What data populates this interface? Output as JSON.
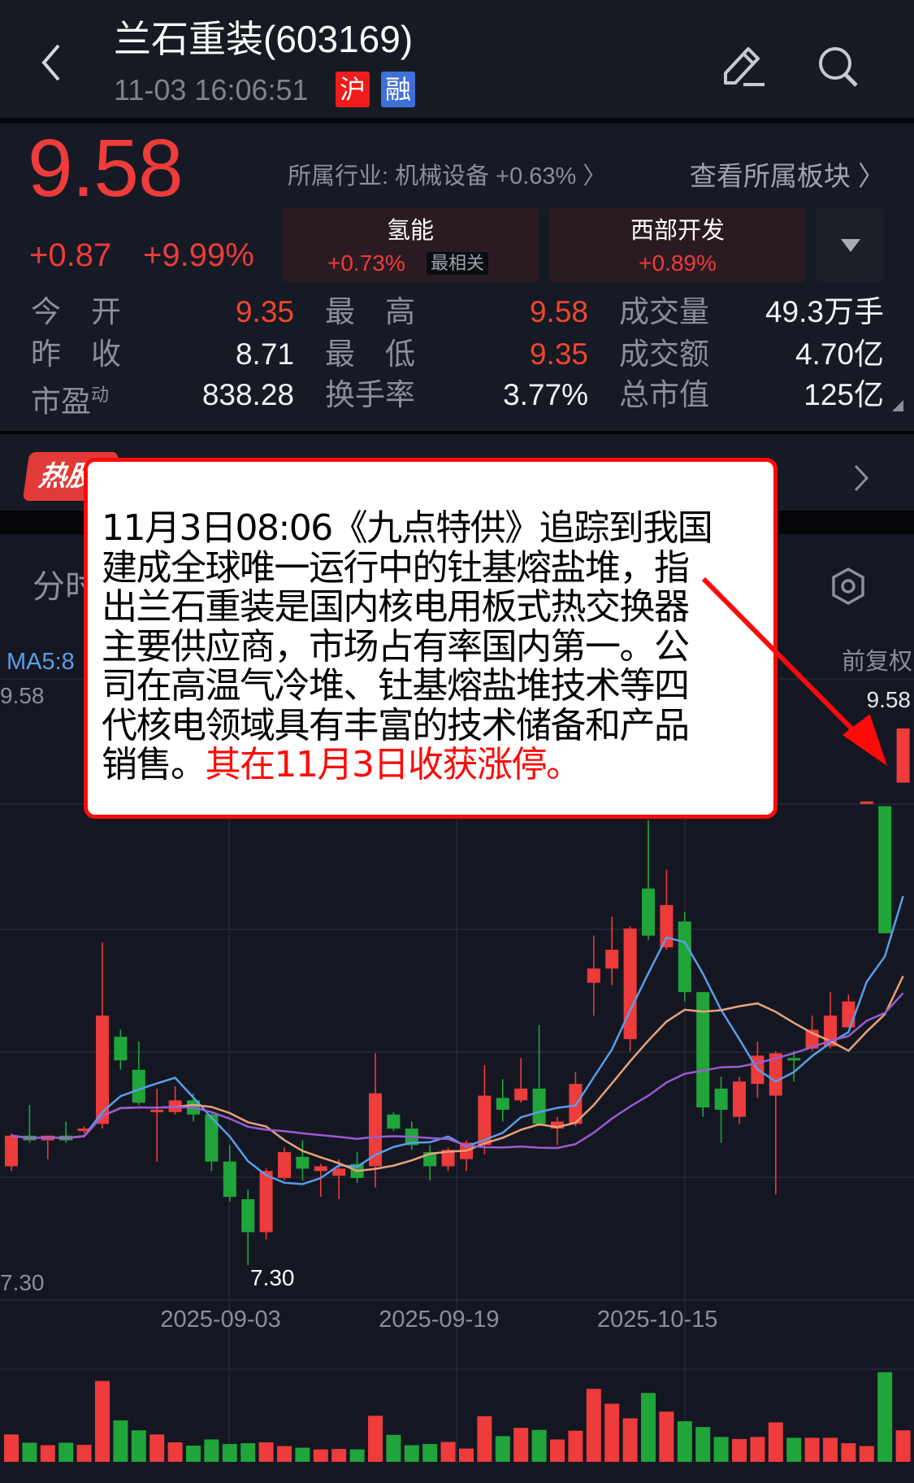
{
  "header": {
    "title": "兰石重装(603169)",
    "timestamp": "11-03 16:06:51",
    "badge_sh": "沪",
    "badge_margin": "融",
    "icons": [
      "back-icon",
      "edit-icon",
      "search-icon"
    ]
  },
  "quote": {
    "price": "9.58",
    "change": "+0.87",
    "change_pct": "+9.99%",
    "industry": "所属行业: 机械设备 +0.63% 〉",
    "view_sectors": "查看所属板块 〉",
    "concepts": [
      {
        "name": "氢能",
        "pct": "+0.73%",
        "tag": "最相关"
      },
      {
        "name": "西部开发",
        "pct": "+0.89%"
      }
    ],
    "stats": [
      {
        "l1": "今　开",
        "v1": "9.35",
        "l2": "最　高",
        "v2": "9.58",
        "l3": "成交量",
        "v3": "49.3万手"
      },
      {
        "l1": "昨　收",
        "v1": "8.71",
        "l2": "最　低",
        "v2": "9.35",
        "l3": "成交额",
        "v3": "4.70亿"
      },
      {
        "l1": "市盈",
        "l1_sup": "动",
        "v1": "838.28",
        "l2": "换手率",
        "v2": "3.77%",
        "l3": "总市值",
        "v3": "125亿"
      }
    ]
  },
  "hot": {
    "badge": "热股"
  },
  "tabs": {
    "first": "分时"
  },
  "chart_meta": {
    "ma_label": "MA5:8",
    "adjust": "前复权",
    "max_left": "9.58",
    "max_right": "9.58",
    "min_left": "7.30",
    "low_mark": "7.30"
  },
  "popup": {
    "lines": [
      "11月3日08:06《九点特供》追踪到我国",
      "建成全球唯一运行中的钍基熔盐堆，指",
      "出兰石重装是国内核电用板式热交换器",
      "主要供应商，市场占有率国内第一。公",
      "司在高温气冷堆、钍基熔盐堆技术等四",
      "代核电领域具有丰富的技术储备和产品"
    ],
    "last_black": "销售。",
    "last_red": "其在11月3日收获涨停。",
    "highlight_color": "#ff0a0a"
  },
  "colors": {
    "up": "#ee3b3b",
    "down": "#1fa53a",
    "ma5": "#5a9de8",
    "ma10": "#e8a27a",
    "ma20": "#9a5bd0",
    "accent_blue": "#3f6fd8"
  },
  "chart_data": {
    "type": "candlestick",
    "ylim": [
      7.3,
      9.58
    ],
    "date_labels": [
      "2025-09-03",
      "2025-09-19",
      "2025-10-15"
    ],
    "date_label_index": [
      11.5,
      23.5,
      35.5
    ],
    "ma_periods": [
      5,
      10,
      20
    ],
    "volume_unit": "万手",
    "ohlc": [
      [
        7.72,
        7.86,
        7.7,
        7.85
      ],
      [
        7.85,
        7.98,
        7.82,
        7.83
      ],
      [
        7.83,
        7.85,
        7.75,
        7.85
      ],
      [
        7.85,
        7.91,
        7.82,
        7.83
      ],
      [
        7.87,
        7.89,
        7.86,
        7.88
      ],
      [
        7.9,
        8.67,
        7.88,
        8.36
      ],
      [
        8.27,
        8.3,
        8.13,
        8.17
      ],
      [
        8.13,
        8.25,
        7.98,
        7.99
      ],
      [
        7.95,
        8.05,
        7.74,
        7.96
      ],
      [
        7.95,
        8.06,
        7.94,
        8.0
      ],
      [
        8.0,
        8.03,
        7.91,
        7.94
      ],
      [
        7.94,
        7.95,
        7.7,
        7.74
      ],
      [
        7.74,
        7.81,
        7.57,
        7.59
      ],
      [
        7.58,
        7.62,
        7.3,
        7.44
      ],
      [
        7.44,
        7.71,
        7.41,
        7.7
      ],
      [
        7.67,
        7.8,
        7.66,
        7.78
      ],
      [
        7.76,
        7.83,
        7.66,
        7.71
      ],
      [
        7.7,
        7.73,
        7.59,
        7.72
      ],
      [
        7.68,
        7.75,
        7.58,
        7.71
      ],
      [
        7.73,
        7.78,
        7.65,
        7.67
      ],
      [
        7.72,
        8.2,
        7.63,
        8.03
      ],
      [
        7.94,
        7.95,
        7.87,
        7.88
      ],
      [
        7.88,
        7.91,
        7.79,
        7.81
      ],
      [
        7.78,
        7.81,
        7.66,
        7.72
      ],
      [
        7.72,
        7.8,
        7.7,
        7.79
      ],
      [
        7.75,
        7.83,
        7.7,
        7.82
      ],
      [
        7.81,
        8.15,
        7.77,
        8.02
      ],
      [
        8.01,
        8.09,
        7.91,
        7.96
      ],
      [
        8.0,
        8.18,
        7.99,
        8.05
      ],
      [
        8.05,
        8.32,
        7.89,
        7.9
      ],
      [
        7.88,
        7.93,
        7.81,
        7.91
      ],
      [
        7.9,
        8.12,
        7.89,
        8.07
      ],
      [
        8.5,
        8.7,
        8.36,
        8.56
      ],
      [
        8.56,
        8.78,
        8.49,
        8.64
      ],
      [
        8.26,
        8.74,
        8.21,
        8.73
      ],
      [
        8.9,
        9.19,
        8.68,
        8.7
      ],
      [
        8.65,
        8.98,
        8.64,
        8.83
      ],
      [
        8.76,
        8.8,
        8.42,
        8.46
      ],
      [
        8.46,
        8.46,
        7.93,
        7.97
      ],
      [
        8.05,
        8.1,
        7.82,
        7.96
      ],
      [
        7.93,
        8.1,
        7.9,
        8.08
      ],
      [
        8.07,
        8.25,
        8.01,
        8.19
      ],
      [
        8.02,
        8.21,
        7.6,
        8.2
      ],
      [
        8.18,
        8.21,
        8.08,
        8.17
      ],
      [
        8.22,
        8.36,
        8.21,
        8.3
      ],
      [
        8.23,
        8.46,
        8.22,
        8.36
      ],
      [
        8.31,
        8.45,
        8.31,
        8.42
      ],
      [
        9.26,
        9.27,
        9.26,
        9.27
      ],
      [
        9.25,
        9.25,
        8.71,
        8.71
      ],
      [
        9.35,
        9.58,
        9.35,
        9.58
      ]
    ],
    "volume": [
      42.8,
      29.9,
      26.0,
      29.9,
      26.6,
      126.6,
      64.9,
      49.3,
      42.8,
      30.5,
      25.3,
      35.0,
      27.9,
      29.2,
      30.5,
      24.7,
      22.1,
      19.5,
      20.1,
      19.5,
      72.0,
      42.2,
      26.0,
      27.9,
      31.2,
      20.8,
      71.4,
      40.2,
      53.2,
      50.0,
      35.0,
      48.7,
      114.2,
      90.9,
      68.1,
      107.7,
      78.5,
      63.6,
      54.5,
      38.9,
      35.7,
      38.9,
      61.7,
      37.6,
      37.6,
      37.6,
      29.2,
      24.7,
      140.2,
      49.3
    ]
  }
}
